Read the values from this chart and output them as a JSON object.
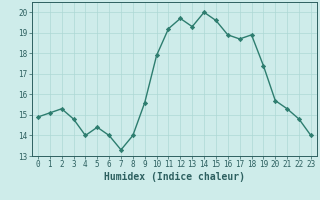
{
  "title": "",
  "xlabel": "Humidex (Indice chaleur)",
  "ylabel": "",
  "x": [
    0,
    1,
    2,
    3,
    4,
    5,
    6,
    7,
    8,
    9,
    10,
    11,
    12,
    13,
    14,
    15,
    16,
    17,
    18,
    19,
    20,
    21,
    22,
    23
  ],
  "y": [
    14.9,
    15.1,
    15.3,
    14.8,
    14.0,
    14.4,
    14.0,
    13.3,
    14.0,
    15.6,
    17.9,
    19.2,
    19.7,
    19.3,
    20.0,
    19.6,
    18.9,
    18.7,
    18.9,
    17.4,
    15.7,
    15.3,
    14.8,
    14.0
  ],
  "line_color": "#2d7d6f",
  "marker": "D",
  "marker_size": 2.2,
  "line_width": 1.0,
  "bg_color": "#ceecea",
  "grid_color": "#add8d5",
  "ylim": [
    13.0,
    20.5
  ],
  "yticks": [
    13,
    14,
    15,
    16,
    17,
    18,
    19,
    20
  ],
  "xticks": [
    0,
    1,
    2,
    3,
    4,
    5,
    6,
    7,
    8,
    9,
    10,
    11,
    12,
    13,
    14,
    15,
    16,
    17,
    18,
    19,
    20,
    21,
    22,
    23
  ],
  "tick_fontsize": 5.5,
  "xlabel_fontsize": 7.0,
  "text_color": "#2d6060"
}
